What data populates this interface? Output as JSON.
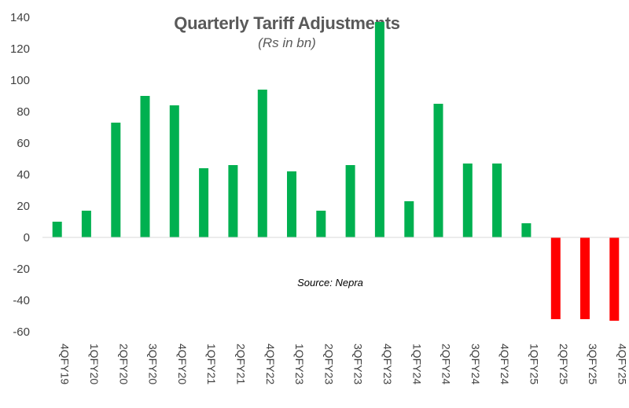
{
  "chart_data": {
    "type": "bar",
    "title": "Quarterly Tariff Adjustments",
    "subtitle": "(Rs in bn)",
    "annotation": "Source: Nepra",
    "categories": [
      "4QFY19",
      "1QFY20",
      "2QFY20",
      "3QFY20",
      "4QFY20",
      "1QFY21",
      "2QFY21",
      "4QFY22",
      "1QFY23",
      "2QFY23",
      "3QFY23",
      "4QFY23",
      "1QFY24",
      "2QFY24",
      "3QFY24",
      "4QFY24",
      "1QFY25",
      "2QFY25",
      "3QFY25",
      "4QFY25"
    ],
    "values": [
      10,
      17,
      73,
      90,
      84,
      44,
      46,
      94,
      42,
      17,
      46,
      137,
      23,
      85,
      47,
      47,
      9,
      -52,
      -52,
      -53
    ],
    "yticks": [
      "140",
      "120",
      "100",
      "80",
      "60",
      "40",
      "20",
      "0",
      "-20",
      "-40",
      "-60"
    ],
    "ylim": [
      -60,
      140
    ],
    "grid": false,
    "legend": false,
    "colors": {
      "positive": "#00b050",
      "negative": "#ff0000",
      "axis": "#d9d9d9",
      "text": "#404040"
    }
  }
}
